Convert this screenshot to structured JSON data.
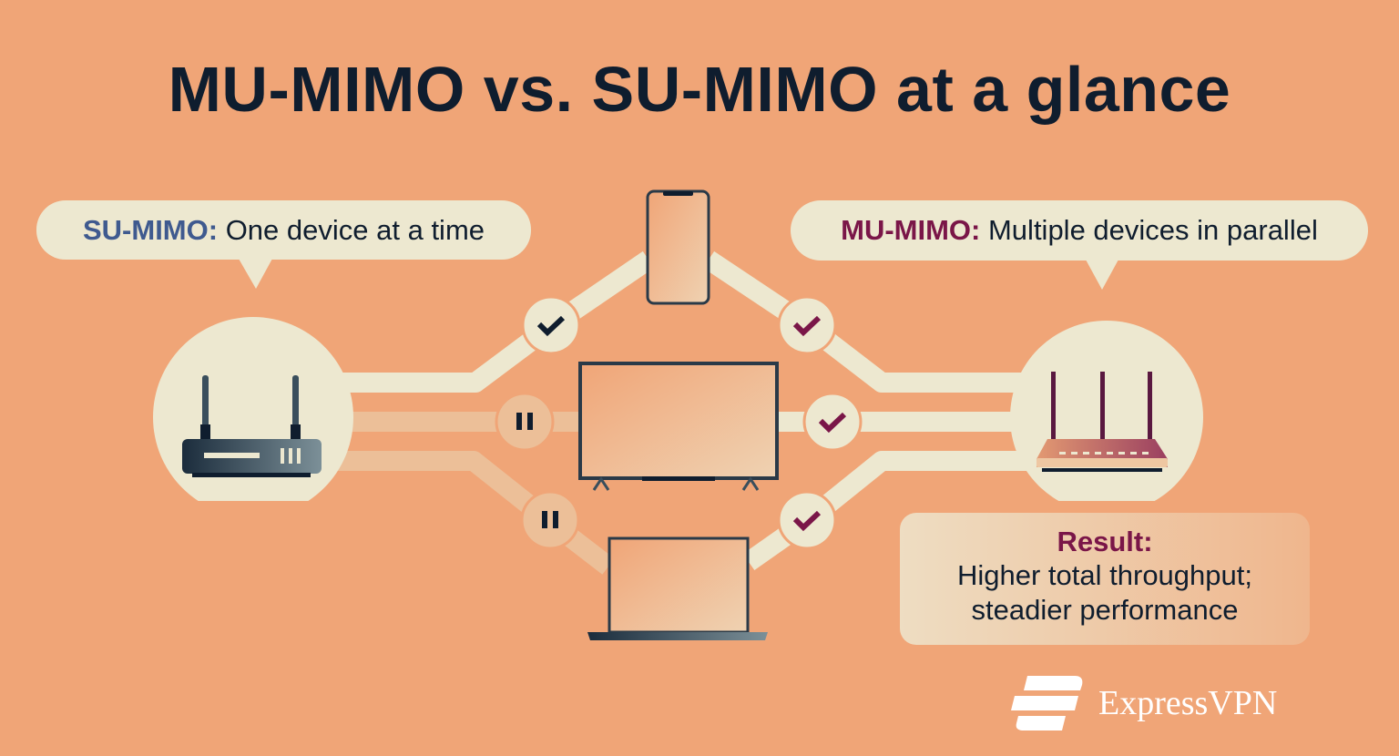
{
  "title": "MU-MIMO vs. SU-MIMO at a glance",
  "su_bubble": {
    "lead": "SU-MIMO:",
    "text": " One device at a time"
  },
  "mu_bubble": {
    "lead": "MU-MIMO:",
    "text": " Multiple devices in parallel"
  },
  "result": {
    "label": "Result:",
    "line1": "Higher total throughput;",
    "line2": "steadier performance"
  },
  "brand": "ExpressVPN",
  "devices": [
    "phone",
    "tv",
    "laptop"
  ],
  "su_status": [
    "check-icon",
    "pause-icon",
    "pause-icon"
  ],
  "mu_status": [
    "check-icon",
    "check-icon",
    "check-icon"
  ],
  "colors": {
    "background": "#F0A577",
    "cream": "#EDE8D0",
    "dark": "#0F1D2E",
    "su_accent": "#3F5A8F",
    "mu_accent": "#7A1648"
  }
}
